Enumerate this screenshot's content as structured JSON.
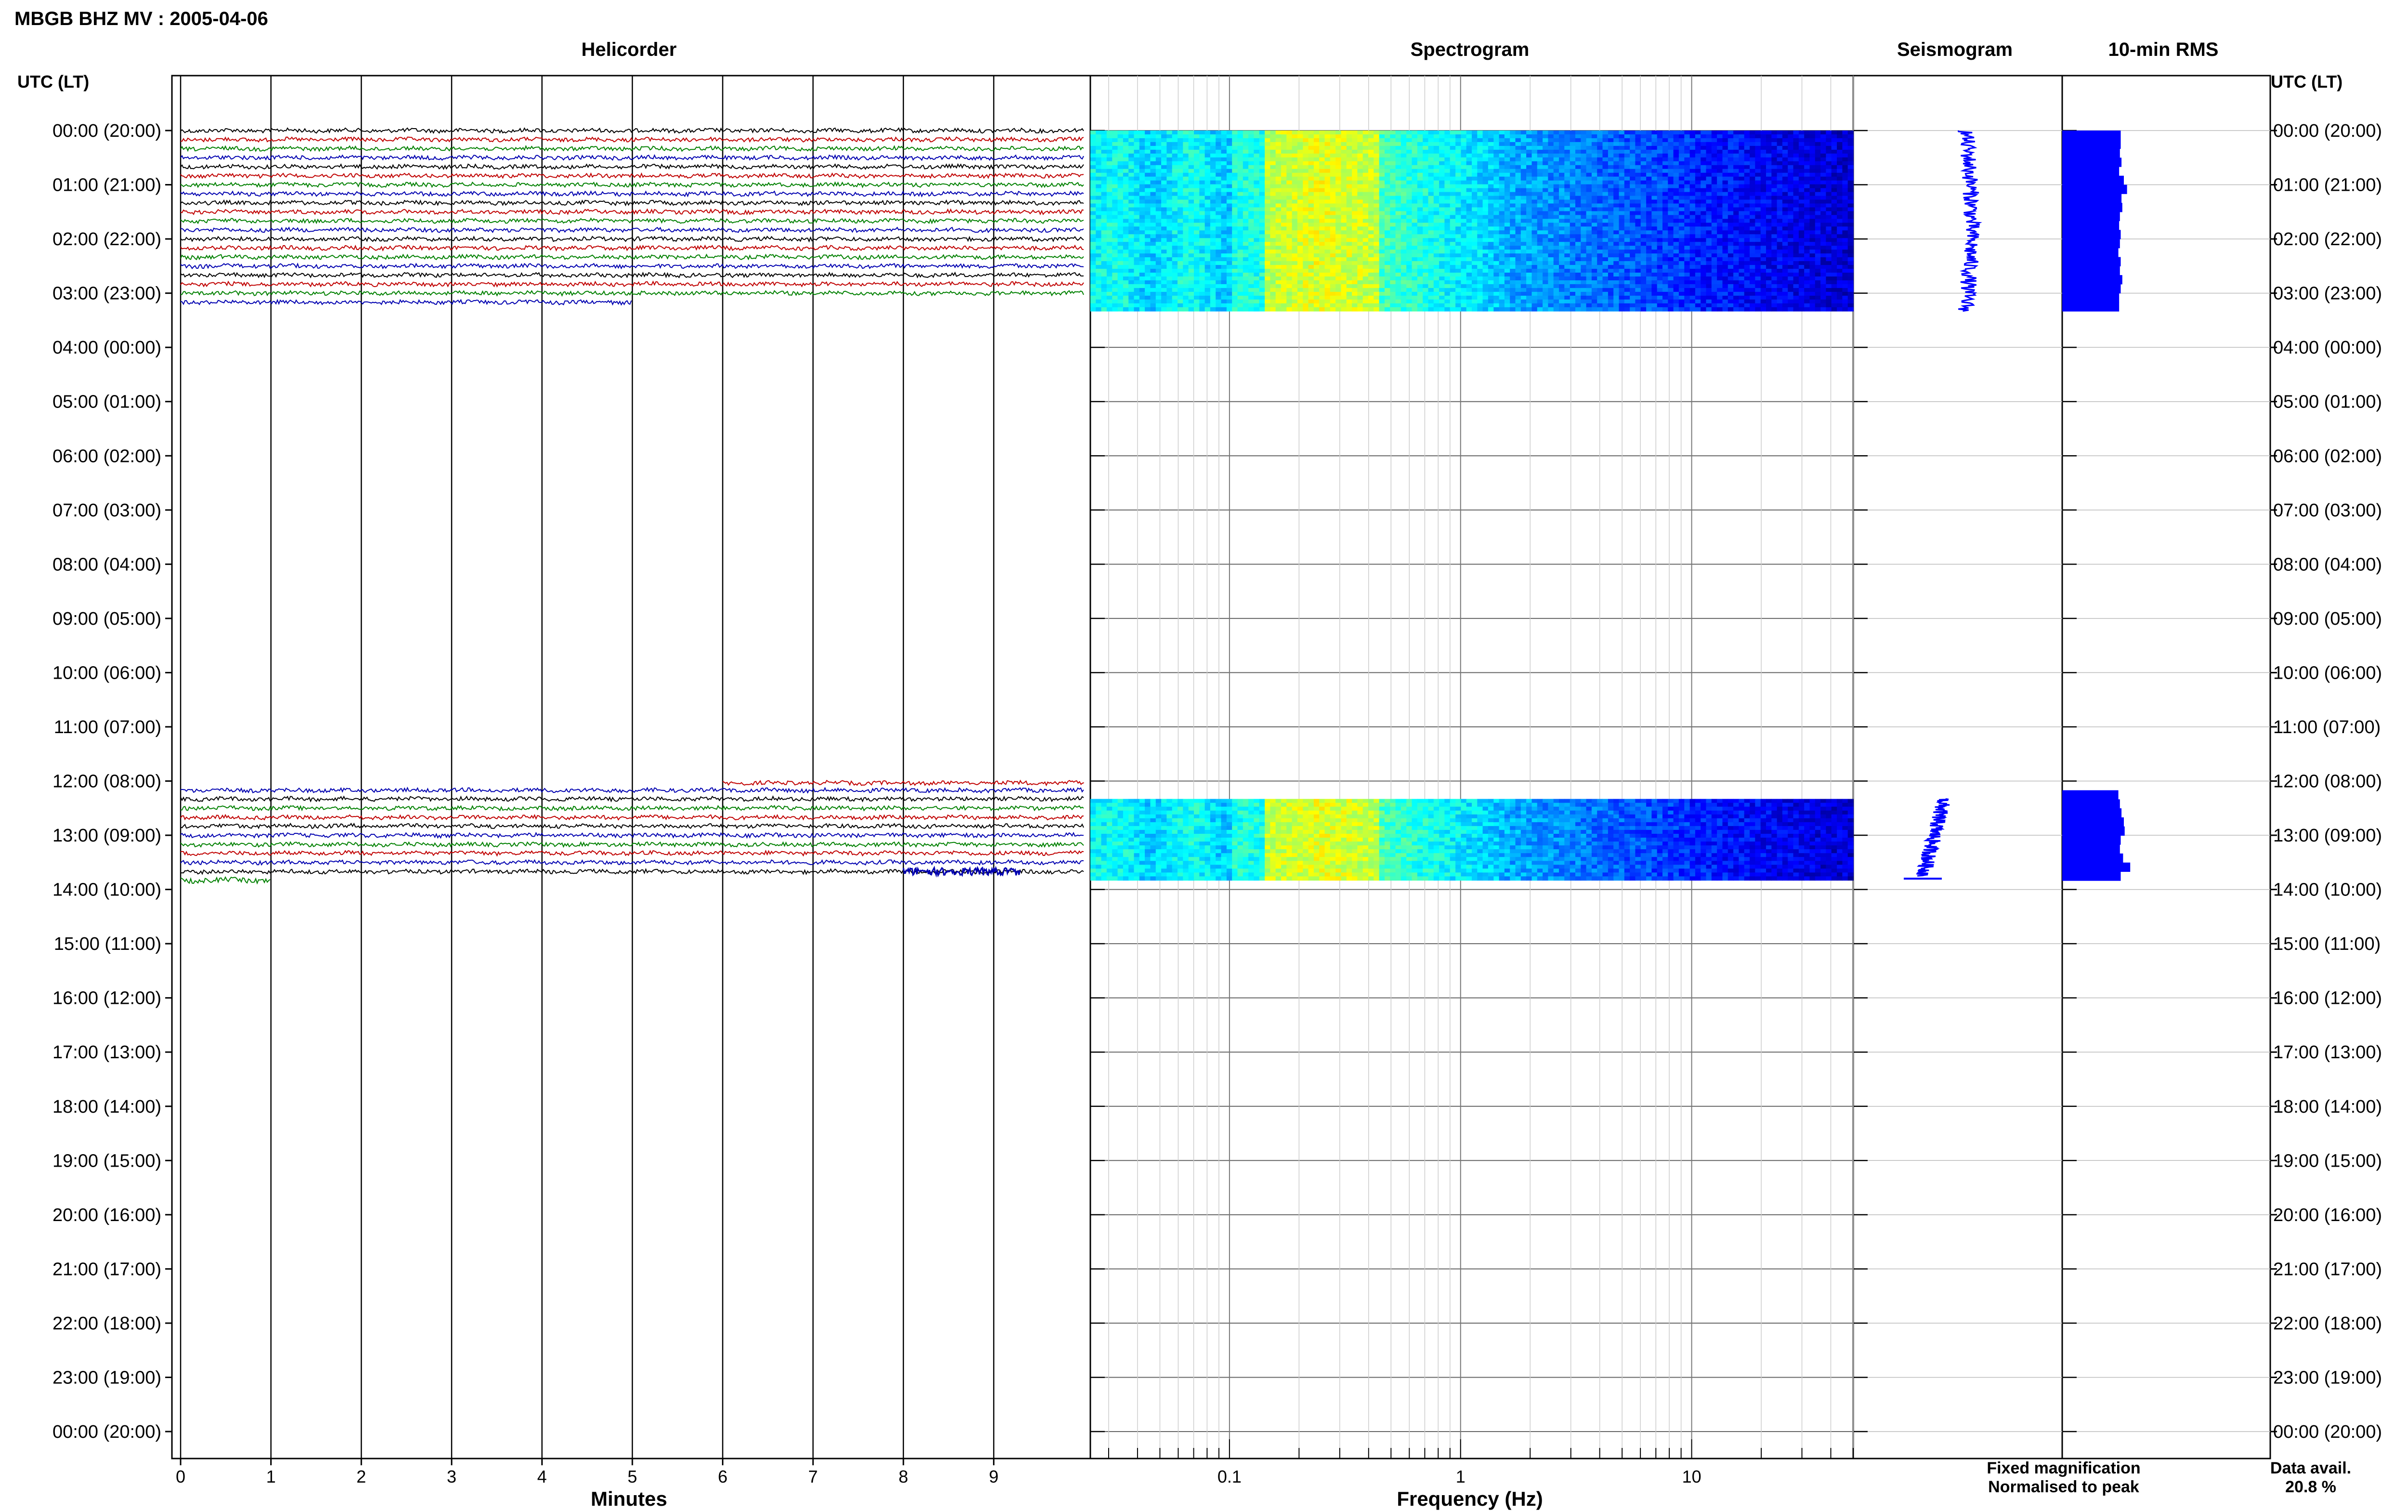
{
  "figure": {
    "title": "MBGB BHZ MV : 2005-04-06",
    "left_axis_label": "UTC (LT)",
    "right_axis_label": "UTC (LT)"
  },
  "panels": {
    "helicorder": {
      "title": "Helicorder",
      "xlabel": "Minutes"
    },
    "spectrogram": {
      "title": "Spectrogram",
      "xlabel": "Frequency (Hz)"
    },
    "seismogram": {
      "title": "Seismogram"
    },
    "rms": {
      "title": "10-min RMS"
    }
  },
  "legend": {
    "fixed": "Fixed magnification",
    "normalised": "Normalised to peak",
    "fixed_color": "#0000ff",
    "normalised_color": "#ff0000"
  },
  "availability": {
    "label": "Data avail.",
    "value": "20.8 %"
  },
  "chart_data": {
    "type": "heatmap",
    "time_ticks": [
      "00:00 (20:00)",
      "01:00 (21:00)",
      "02:00 (22:00)",
      "03:00 (23:00)",
      "04:00 (00:00)",
      "05:00 (01:00)",
      "06:00 (02:00)",
      "07:00 (03:00)",
      "08:00 (04:00)",
      "09:00 (05:00)",
      "10:00 (06:00)",
      "11:00 (07:00)",
      "12:00 (08:00)",
      "13:00 (09:00)",
      "14:00 (10:00)",
      "15:00 (11:00)",
      "16:00 (12:00)",
      "17:00 (13:00)",
      "18:00 (14:00)",
      "19:00 (15:00)",
      "20:00 (16:00)",
      "21:00 (17:00)",
      "22:00 (18:00)",
      "23:00 (19:00)",
      "00:00 (20:00)"
    ],
    "helicorder": {
      "x_ticks": [
        "0",
        "1",
        "2",
        "3",
        "4",
        "5",
        "6",
        "7",
        "8",
        "9"
      ],
      "xlim": [
        0,
        10
      ],
      "trace_colors": [
        "#000000",
        "#c00000",
        "#008000",
        "#0000b0"
      ],
      "data_segments_hours": [
        [
          0,
          3.33
        ],
        [
          12.17,
          13.83
        ]
      ]
    },
    "spectrogram": {
      "x_scale": "log",
      "xlim": [
        0.025,
        50
      ],
      "x_ticks": [
        "0.1",
        "1",
        "10"
      ],
      "x_tick_values": [
        0.1,
        1,
        10
      ],
      "data_segments_hours": [
        [
          0,
          3.33
        ],
        [
          12.33,
          13.83
        ]
      ]
    },
    "seismogram": {
      "data_segments_hours": [
        [
          0,
          3.33
        ],
        [
          12.33,
          13.83
        ]
      ]
    },
    "rms": {
      "interval_minutes": 10,
      "segments": [
        {
          "start_hour": 0,
          "values": [
            0.74,
            0.74,
            0.73,
            0.75,
            0.72,
            0.78,
            0.82,
            0.75,
            0.76,
            0.73,
            0.72,
            0.74,
            0.73,
            0.71,
            0.74,
            0.73,
            0.76,
            0.74,
            0.72,
            0.72
          ]
        },
        {
          "start_hour": 12.17,
          "values": [
            0.71,
            0.73,
            0.75,
            0.78,
            0.79,
            0.74,
            0.73,
            0.77,
            0.86,
            0.74
          ]
        }
      ]
    }
  }
}
